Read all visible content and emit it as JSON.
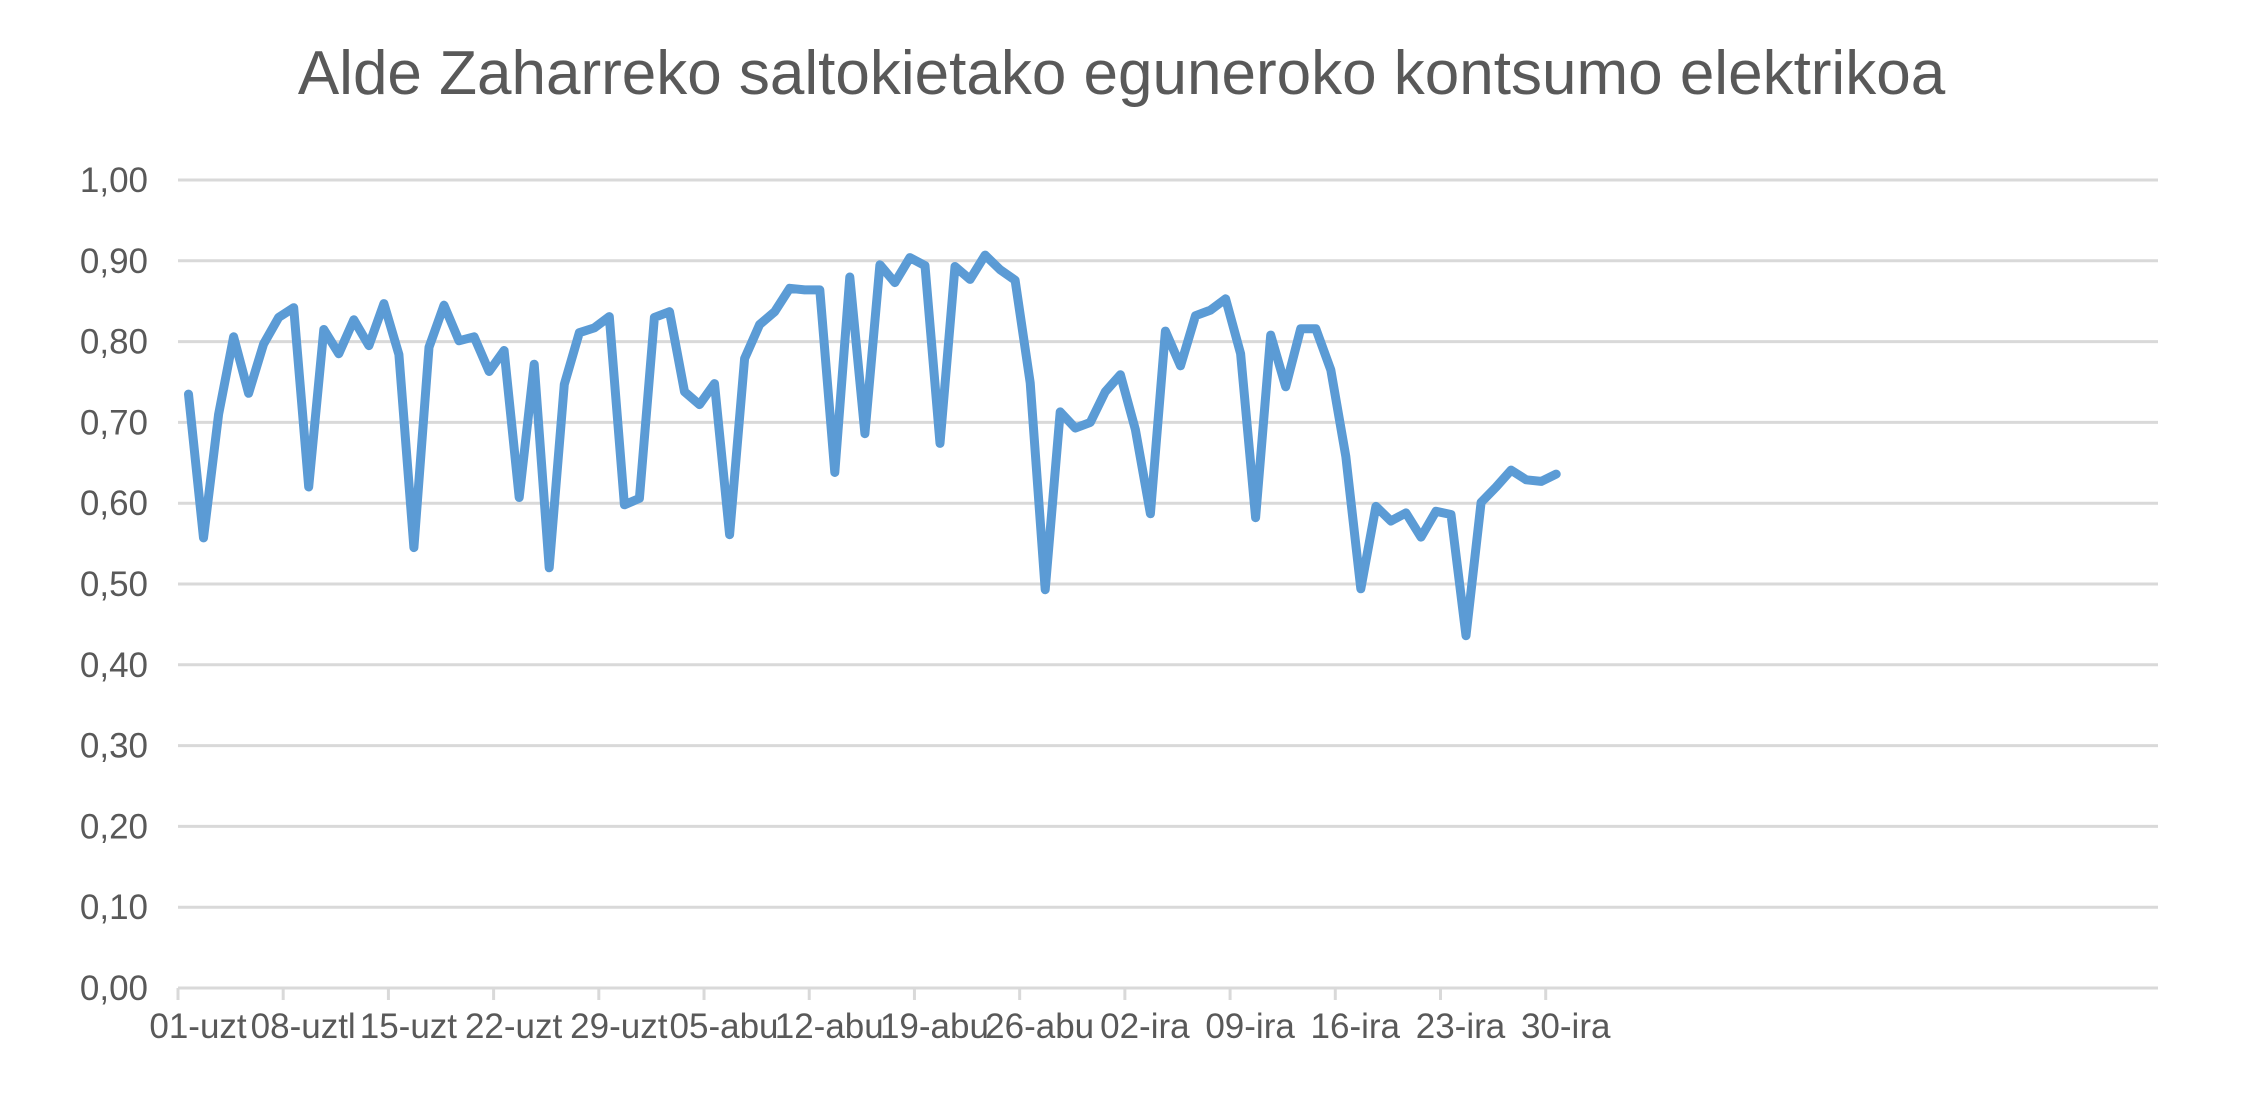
{
  "chart_data": {
    "type": "line",
    "title": "Alde Zaharreko saltokietako eguneroko kontsumo elektrikoa",
    "xlabel": "",
    "ylabel": "",
    "ylim": [
      0,
      1
    ],
    "y_ticks": [
      "0,00",
      "0,10",
      "0,20",
      "0,30",
      "0,40",
      "0,50",
      "0,60",
      "0,70",
      "0,80",
      "0,90",
      "1,00"
    ],
    "x_tick_labels": [
      "01-uzt",
      "08-uztl",
      "15-uzt",
      "22-uzt",
      "29-uzt",
      "05-abu",
      "12-abu",
      "19-abu",
      "26-abu",
      "02-ira",
      "09-ira",
      "16-ira",
      "23-ira",
      "30-ira"
    ],
    "grid": true,
    "legend": "none",
    "series": [
      {
        "color": "#5b9bd5",
        "values": [
          0.735,
          0.557,
          0.71,
          0.806,
          0.736,
          0.797,
          0.83,
          0.842,
          0.62,
          0.815,
          0.785,
          0.827,
          0.795,
          0.847,
          0.784,
          0.545,
          0.793,
          0.845,
          0.801,
          0.806,
          0.763,
          0.789,
          0.607,
          0.772,
          0.52,
          0.747,
          0.811,
          0.817,
          0.831,
          0.598,
          0.606,
          0.83,
          0.837,
          0.738,
          0.722,
          0.748,
          0.561,
          0.779,
          0.821,
          0.837,
          0.866,
          0.864,
          0.864,
          0.638,
          0.88,
          0.686,
          0.895,
          0.873,
          0.904,
          0.894,
          0.674,
          0.893,
          0.877,
          0.907,
          0.889,
          0.876,
          0.749,
          0.493,
          0.713,
          0.693,
          0.7,
          0.738,
          0.759,
          0.691,
          0.587,
          0.813,
          0.77,
          0.832,
          0.839,
          0.853,
          0.785,
          0.582,
          0.808,
          0.744,
          0.816,
          0.816,
          0.765,
          0.658,
          0.494,
          0.596,
          0.578,
          0.588,
          0.558,
          0.59,
          0.586,
          0.436,
          0.601,
          0.62,
          0.641,
          0.629,
          0.627,
          0.636
        ]
      }
    ]
  }
}
